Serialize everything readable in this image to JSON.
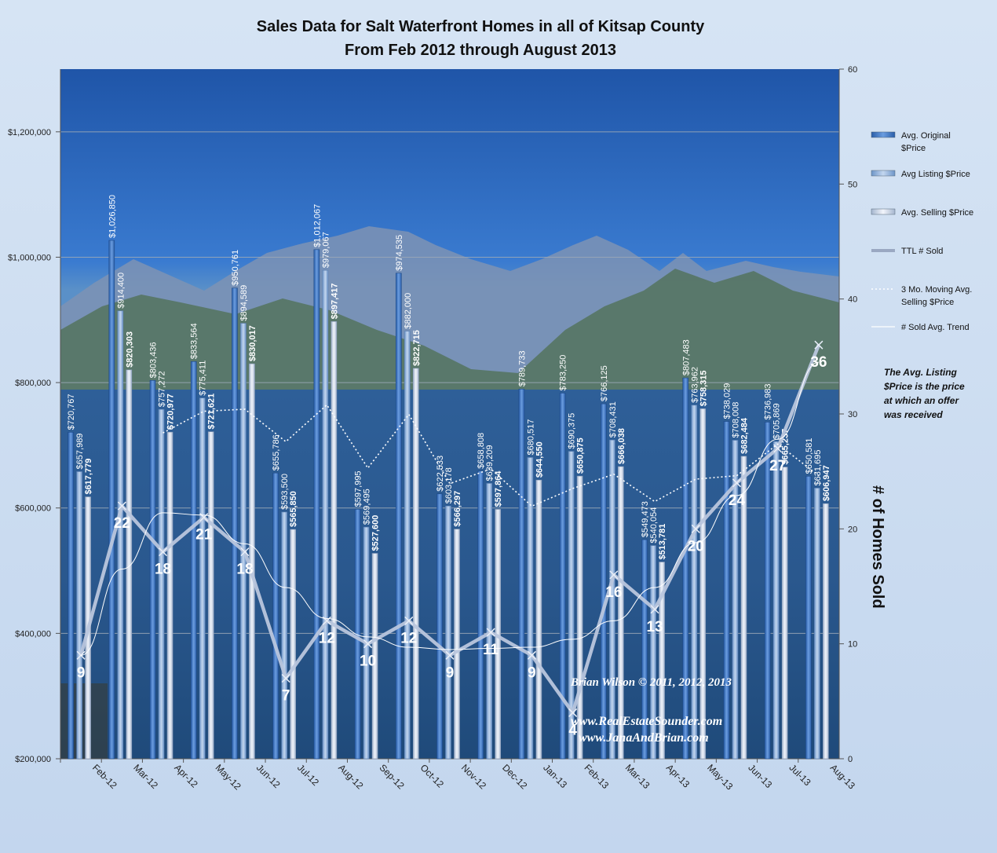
{
  "chart_data": {
    "type": "bar",
    "title": "Sales Data for Salt Waterfront Homes in all of Kitsap County",
    "subtitle": "From Feb 2012 through August 2013",
    "categories": [
      "Feb-12",
      "Mar-12",
      "Apr-12",
      "May-12",
      "Jun-12",
      "Jul-12",
      "Aug-12",
      "Sep-12",
      "Oct-12",
      "Nov-12",
      "Dec-12",
      "Jan-13",
      "Feb-13",
      "Mar-13",
      "Apr-13",
      "May-13",
      "Jun-13",
      "Jul-13",
      "Aug-13"
    ],
    "series": [
      {
        "name": "Avg. Original $Price",
        "values": [
          720767,
          1026850,
          803436,
          833564,
          950761,
          655786,
          1012067,
          597995,
          974535,
          622533,
          658808,
          789733,
          783250,
          766125,
          549473,
          807483,
          738029,
          736983,
          650581
        ],
        "labels": [
          "$720,767",
          "$1,026,850",
          "$803,436",
          "$833,564",
          "$950,761",
          "$655,786",
          "$1,012,067",
          "$597,995",
          "$974,535",
          "$622,533",
          "$658,808",
          "$789,733",
          "$783,250",
          "$766,125",
          "$549,473",
          "$807,483",
          "$738,029",
          "$736,983",
          "$650,581"
        ]
      },
      {
        "name": "Avg Listing $Price",
        "values": [
          657989,
          914400,
          757272,
          775411,
          894589,
          593500,
          979067,
          569495,
          882000,
          603178,
          639209,
          680517,
          690375,
          708431,
          540054,
          763962,
          708008,
          705869,
          631695
        ],
        "labels": [
          "$657,989",
          "$914,400",
          "$757,272",
          "$775,411",
          "$894,589",
          "$593,500",
          "$979,067",
          "$569,495",
          "$882,000",
          "$603,178",
          "$639,209",
          "$680,517",
          "$690,375",
          "$708,431",
          "$540,054",
          "$763,962",
          "$708,008",
          "$705,869",
          "$631,695"
        ]
      },
      {
        "name": "Avg. Selling $Price",
        "values": [
          617779,
          820303,
          720977,
          721621,
          830017,
          565850,
          897417,
          527600,
          822715,
          566297,
          597864,
          644550,
          650875,
          666038,
          513781,
          758315,
          682484,
          665237,
          606947
        ],
        "labels": [
          "$617,779",
          "$820,303",
          "$720,977",
          "$721,621",
          "$830,017",
          "$565,850",
          "$897,417",
          "$527,600",
          "$822,715",
          "$566,297",
          "$597,864",
          "$644,550",
          "$650,875",
          "$666,038",
          "$513,781",
          "$758,315",
          "$682,484",
          "$665,237",
          "$606,947"
        ]
      },
      {
        "name": "TTL # Sold",
        "axis": "right",
        "values": [
          9,
          22,
          18,
          21,
          18,
          7,
          12,
          10,
          12,
          9,
          11,
          9,
          4,
          16,
          13,
          20,
          24,
          27,
          36
        ]
      },
      {
        "name": "3 Mo. Moving Avg. Selling $Price",
        "values": [
          null,
          null,
          719686,
          754300,
          757538,
          705829,
          764428,
          663622,
          749244,
          638871,
          662292,
          602904,
          631096,
          653821,
          610231,
          646045,
          651527,
          701979,
          651556
        ]
      },
      {
        "name": "# Sold Avg. Trend",
        "axis": "right",
        "values": [
          9,
          16.5,
          21.4,
          21.2,
          18.7,
          14.9,
          12.2,
          10.6,
          9.7,
          9.5,
          9.6,
          9.7,
          10.4,
          12,
          14.9,
          18.8,
          22.9,
          27.8,
          34.5
        ]
      }
    ],
    "yleft": {
      "min": 200000,
      "max": 1300000,
      "ticks": [
        "$200,000",
        "$400,000",
        "$600,000",
        "$800,000",
        "$1,000,000",
        "$1,200,000"
      ],
      "tick_values": [
        200000,
        400000,
        600000,
        800000,
        1000000,
        1200000
      ]
    },
    "yright": {
      "min": 0,
      "max": 60,
      "ticks": [
        "0",
        "10",
        "20",
        "30",
        "40",
        "50",
        "60"
      ],
      "tick_values": [
        0,
        10,
        20,
        30,
        40,
        50,
        60
      ],
      "label": "# of Homes Sold"
    },
    "grid": "horizontal",
    "legend_position": "right",
    "legend": [
      "Avg. Original $Price",
      "Avg Listing $Price",
      "Avg. Selling $Price",
      "TTL # Sold",
      "3 Mo. Moving Avg. Selling $Price",
      "# Sold Avg. Trend"
    ],
    "note": "The Avg. Listing $Price is the price at which an offer was received",
    "credit": [
      "Brian Wilson  © 2011, 2012, 2013",
      "www.RealEstateSounder.com",
      "www.JanaAndBrian.com"
    ]
  },
  "colors": {
    "original_bar": "#3d76c4",
    "listing_bar": "#8fb1da",
    "selling_bar": "#d4dfee",
    "sold_line": "#b9c6dd",
    "avg_line": "#ffffff"
  }
}
